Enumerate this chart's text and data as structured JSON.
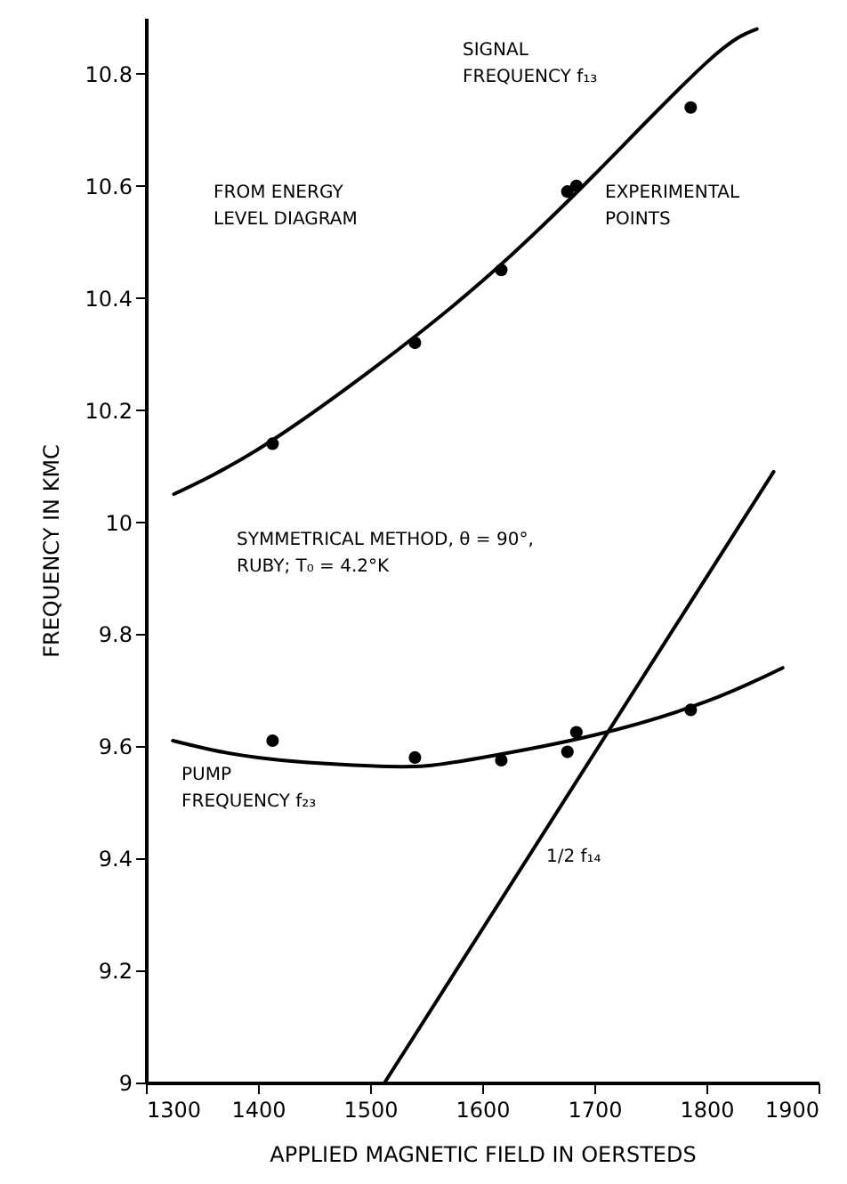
{
  "chart_data": {
    "type": "line",
    "xlabel": "APPLIED MAGNETIC FIELD IN OERSTEDS",
    "ylabel": "FREQUENCY IN KMC",
    "xlim": [
      1300,
      1900
    ],
    "ylim": [
      9.0,
      10.9
    ],
    "xticks": [
      1300,
      1400,
      1500,
      1600,
      1700,
      1800,
      1900
    ],
    "yticks": [
      9.0,
      9.2,
      9.4,
      9.6,
      9.8,
      10.0,
      10.2,
      10.4,
      10.6,
      10.8
    ],
    "line_style": "solid",
    "series": [
      {
        "type": "line",
        "color": "#000000",
        "x": [
          1325,
          1400,
          1500,
          1600,
          1700,
          1800,
          1845
        ],
        "values": [
          10.05,
          10.13,
          10.27,
          10.43,
          10.62,
          10.82,
          10.88
        ]
      },
      {
        "type": "scatter",
        "marker": "circle",
        "color": "#000000",
        "x": [
          1413,
          1540,
          1617,
          1676,
          1684,
          1786
        ],
        "values": [
          10.14,
          10.32,
          10.45,
          10.59,
          10.6,
          10.74
        ]
      },
      {
        "type": "line",
        "color": "#000000",
        "x": [
          1324,
          1400,
          1500,
          1550,
          1600,
          1700,
          1800,
          1868
        ],
        "values": [
          9.61,
          9.58,
          9.565,
          9.565,
          9.58,
          9.62,
          9.68,
          9.74
        ]
      },
      {
        "type": "scatter",
        "marker": "circle",
        "color": "#000000",
        "x": [
          1413,
          1540,
          1617,
          1676,
          1684,
          1786
        ],
        "values": [
          9.61,
          9.58,
          9.575,
          9.59,
          9.625,
          9.665
        ]
      },
      {
        "type": "line",
        "color": "#000000",
        "x": [
          1513,
          1860
        ],
        "values": [
          9.0,
          10.09
        ]
      }
    ],
    "annotations": [
      "SIGNAL\nFREQUENCY f₁₃",
      "FROM ENERGY\nLEVEL DIAGRAM",
      "EXPERIMENTAL\nPOINTS",
      "SYMMETRICAL METHOD, θ = 90°,\nRUBY; T₀ = 4.2°K",
      "PUMP\nFREQUENCY f₂₃",
      "1/2 f₁₄"
    ]
  }
}
